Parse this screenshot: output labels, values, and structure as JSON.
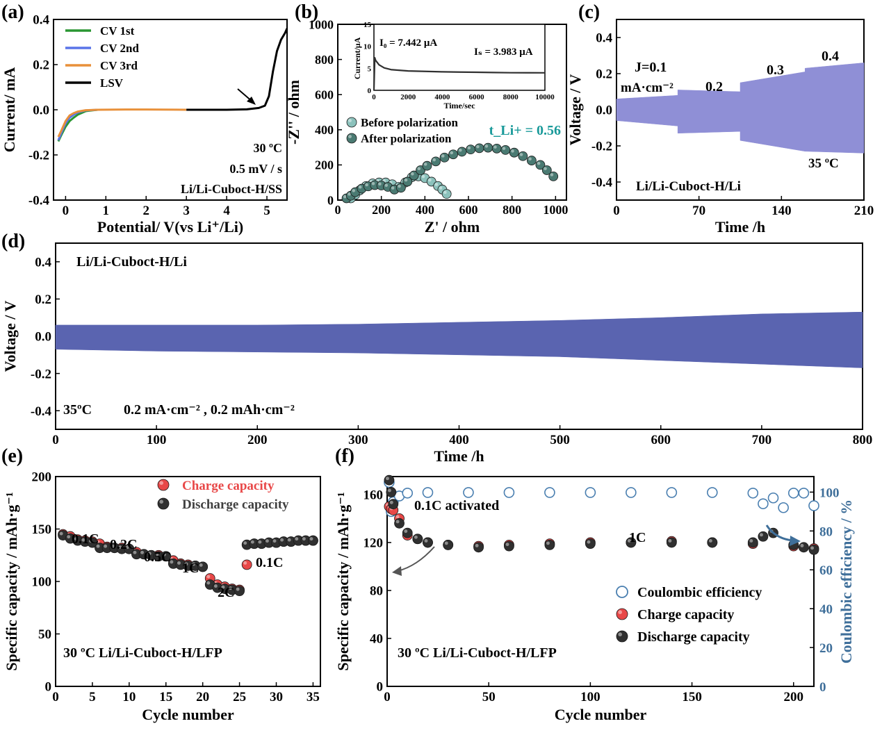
{
  "chart_data": [
    {
      "panel": "(a)",
      "type": "line",
      "xlabel": "Potential/ V(vs Li⁺/Li)",
      "ylabel": "Current/ mA",
      "xlim": [
        -0.3,
        5.5
      ],
      "ylim": [
        -0.4,
        0.4
      ],
      "xticks": [
        0,
        1,
        2,
        3,
        4,
        5
      ],
      "yticks": [
        -0.4,
        -0.2,
        0.0,
        0.2,
        0.4
      ],
      "tick_format": 1,
      "legend_position": "top-left",
      "annotations": [
        "30 ºC",
        "0.5 mV / s",
        "Li/Li-Cuboct-H/SS"
      ],
      "series": [
        {
          "name": "CV 1st",
          "color": "#2a9632",
          "x": [
            -0.18,
            -0.1,
            0.0,
            0.1,
            0.2,
            0.3,
            0.5,
            0.8
          ],
          "y": [
            -0.14,
            -0.11,
            -0.075,
            -0.05,
            -0.035,
            -0.022,
            -0.006,
            0.0
          ]
        },
        {
          "name": "CV 2nd",
          "color": "#5a74e8",
          "x": [
            -0.18,
            -0.1,
            0.0,
            0.1,
            0.2,
            0.3,
            0.5,
            0.8
          ],
          "y": [
            -0.135,
            -0.1,
            -0.06,
            -0.035,
            -0.022,
            -0.012,
            -0.003,
            0.0
          ]
        },
        {
          "name": "CV 3rd",
          "color": "#e8903a",
          "x": [
            -0.18,
            -0.1,
            0.0,
            0.1,
            0.2,
            0.3,
            0.5,
            0.8,
            1.5,
            2.0,
            3.0
          ],
          "y": [
            -0.12,
            -0.09,
            -0.05,
            -0.025,
            -0.015,
            -0.008,
            -0.002,
            0.0,
            0.001,
            0.001,
            0.0
          ]
        },
        {
          "name": "LSV",
          "color": "#000000",
          "x": [
            3.0,
            4.0,
            4.5,
            4.8,
            4.95,
            5.05,
            5.15,
            5.25,
            5.35,
            5.45,
            5.5
          ],
          "y": [
            0.0,
            0.0,
            0.002,
            0.008,
            0.018,
            0.06,
            0.17,
            0.26,
            0.31,
            0.34,
            0.36
          ]
        }
      ]
    },
    {
      "panel": "(b)",
      "type": "scatter",
      "xlabel": "Z' / ohm",
      "ylabel": "-Z'' / ohm",
      "xlim": [
        0,
        1050
      ],
      "ylim": [
        0,
        1000
      ],
      "xticks": [
        0,
        200,
        400,
        600,
        800,
        1000
      ],
      "yticks": [
        0,
        200,
        400,
        600,
        800,
        1000
      ],
      "legend_position": "middle-left",
      "annotation": "t_Li+ = 0.56",
      "series": [
        {
          "name": "Before polarization",
          "color": "#8cc2bc",
          "x": [
            60,
            80,
            100,
            130,
            160,
            190,
            220,
            250,
            280,
            310,
            340,
            370,
            400,
            430,
            460,
            480,
            500
          ],
          "y": [
            10,
            30,
            55,
            80,
            95,
            100,
            100,
            90,
            75,
            100,
            130,
            135,
            125,
            105,
            80,
            60,
            35
          ]
        },
        {
          "name": "After polarization",
          "color": "#4a7a72",
          "x": [
            40,
            60,
            80,
            110,
            140,
            170,
            200,
            230,
            260,
            290,
            320,
            350,
            380,
            410,
            450,
            490,
            530,
            570,
            610,
            650,
            690,
            730,
            770,
            810,
            850,
            890,
            930,
            960,
            990
          ],
          "y": [
            10,
            25,
            45,
            65,
            78,
            85,
            83,
            75,
            60,
            70,
            105,
            140,
            170,
            195,
            220,
            242,
            260,
            275,
            288,
            295,
            298,
            293,
            285,
            270,
            250,
            225,
            200,
            170,
            135
          ]
        }
      ],
      "inset": {
        "xlabel": "Time/sec",
        "ylabel": "Current/μA",
        "xlim": [
          0,
          10000
        ],
        "ylim": [
          0,
          15
        ],
        "xticks": [
          0,
          2000,
          4000,
          6000,
          8000,
          10000
        ],
        "yticks": [
          0,
          5,
          10,
          15
        ],
        "labels": [
          "I₀ = 7.442 μA",
          "Iₛ = 3.983 μA"
        ],
        "x": [
          0,
          50,
          100,
          300,
          600,
          1000,
          2000,
          3000,
          4000,
          5000,
          6000,
          7000,
          8000,
          9000,
          10000
        ],
        "y": [
          0,
          7.4,
          6.8,
          5.8,
          5.1,
          4.7,
          4.4,
          4.3,
          4.2,
          4.15,
          4.1,
          4.05,
          4.0,
          3.99,
          3.98
        ]
      }
    },
    {
      "panel": "(c)",
      "type": "area",
      "xlabel": "Time /h",
      "ylabel": "Voltage / V",
      "xlim": [
        0,
        210
      ],
      "ylim": [
        -0.5,
        0.5
      ],
      "xticks": [
        0,
        70,
        140,
        210
      ],
      "yticks": [
        -0.4,
        -0.2,
        0.0,
        0.2,
        0.4
      ],
      "tick_format": 1,
      "color": "#8f8fd6",
      "labels": [
        "J=0.1",
        "mA·cm⁻²",
        "0.2",
        "0.3",
        "0.4",
        "35 ºC",
        "Li/Li-Cuboct-H/Li"
      ],
      "segments": [
        {
          "current": 0.1,
          "x": [
            0,
            52
          ],
          "upper": [
            0.06,
            0.08
          ],
          "lower": [
            -0.06,
            -0.09
          ]
        },
        {
          "current": 0.2,
          "x": [
            52,
            105
          ],
          "upper": [
            0.11,
            0.1
          ],
          "lower": [
            -0.13,
            -0.12
          ]
        },
        {
          "current": 0.3,
          "x": [
            105,
            160
          ],
          "upper": [
            0.15,
            0.21
          ],
          "lower": [
            -0.17,
            -0.23
          ]
        },
        {
          "current": 0.4,
          "x": [
            160,
            210
          ],
          "upper": [
            0.23,
            0.26
          ],
          "lower": [
            -0.23,
            -0.24
          ]
        }
      ]
    },
    {
      "panel": "(d)",
      "type": "area",
      "xlabel": "Time /h",
      "ylabel": "Voltage / V",
      "xlim": [
        0,
        800
      ],
      "ylim": [
        -0.5,
        0.5
      ],
      "xticks": [
        0,
        100,
        200,
        300,
        400,
        500,
        600,
        700,
        800
      ],
      "yticks": [
        -0.4,
        -0.2,
        0.0,
        0.2,
        0.4
      ],
      "tick_format": 1,
      "color": "#5a64b0",
      "labels": [
        "Li/Li-Cuboct-H/Li",
        "35ºC",
        "0.2 mA·cm⁻² , 0.2 mAh·cm⁻²"
      ],
      "x": [
        0,
        100,
        200,
        300,
        400,
        500,
        600,
        700,
        800
      ],
      "upper": [
        0.06,
        0.06,
        0.06,
        0.065,
        0.075,
        0.085,
        0.1,
        0.12,
        0.13
      ],
      "lower": [
        -0.07,
        -0.08,
        -0.085,
        -0.09,
        -0.1,
        -0.11,
        -0.13,
        -0.15,
        -0.17
      ]
    },
    {
      "panel": "(e)",
      "type": "scatter",
      "xlabel": "Cycle number",
      "ylabel": "Specific capacity / mAh·g⁻¹",
      "xlim": [
        0,
        36
      ],
      "ylim": [
        0,
        200
      ],
      "xticks": [
        0,
        5,
        10,
        15,
        20,
        25,
        30,
        35
      ],
      "yticks": [
        0,
        50,
        100,
        150,
        200
      ],
      "legend_position": "top-right",
      "labels": [
        "0.1C",
        "0.2C",
        "0.5C",
        "1C",
        "2C",
        "0.1C",
        "30 ºC  Li/Li-Cuboct-H/LFP"
      ],
      "x": [
        1,
        2,
        3,
        4,
        5,
        6,
        7,
        8,
        9,
        10,
        11,
        12,
        13,
        14,
        15,
        16,
        17,
        18,
        19,
        20,
        21,
        22,
        23,
        24,
        25,
        26,
        27,
        28,
        29,
        30,
        31,
        32,
        33,
        34,
        35
      ],
      "series": [
        {
          "name": "Charge capacity",
          "color": "#e84848",
          "values": [
            145,
            143,
            140,
            139,
            138,
            136,
            133,
            132,
            132,
            131,
            128,
            126,
            125,
            125,
            124,
            120,
            117,
            116,
            115,
            114,
            103,
            97,
            95,
            93,
            92,
            116,
            136,
            136,
            137,
            137,
            138,
            138,
            139,
            139,
            139
          ]
        },
        {
          "name": "Discharge capacity",
          "color": "#303030",
          "values": [
            144,
            141,
            139,
            138,
            137,
            132,
            132,
            132,
            131,
            131,
            126,
            126,
            125,
            124,
            124,
            117,
            116,
            115,
            115,
            114,
            97,
            94,
            93,
            92,
            91,
            135,
            136,
            136,
            137,
            137,
            138,
            138,
            139,
            139,
            139
          ]
        }
      ]
    },
    {
      "panel": "(f)",
      "type": "scatter",
      "xlabel": "Cycle number",
      "ylabel": "Specific capacity / mAh·g⁻¹",
      "y2label": "Coulombic efficiency / %",
      "xlim": [
        0,
        210
      ],
      "ylim": [
        0,
        175
      ],
      "y2lim": [
        0,
        108
      ],
      "xticks": [
        0,
        50,
        100,
        150,
        200
      ],
      "yticks": [
        0,
        40,
        80,
        120,
        160
      ],
      "y2ticks": [
        0,
        20,
        40,
        60,
        80,
        100
      ],
      "legend_position": "bottom-right",
      "labels": [
        "0.1C activated",
        "1C",
        "30 ºC  Li/Li-Cuboct-H/LFP"
      ],
      "series": [
        {
          "name": "Coulombic efficiency",
          "color": "#4a7fb0",
          "axis": "right",
          "x": [
            1,
            2,
            3,
            6,
            10,
            20,
            40,
            60,
            80,
            100,
            120,
            140,
            160,
            180,
            185,
            190,
            195,
            200,
            205,
            210
          ],
          "y": [
            105,
            90,
            95,
            98,
            99.5,
            99.8,
            99.8,
            99.8,
            99.8,
            99.8,
            99.8,
            99.8,
            99.8,
            99.5,
            94,
            97,
            92,
            99.5,
            99.5,
            93
          ]
        },
        {
          "name": "Charge capacity",
          "color": "#e84848",
          "axis": "left",
          "x": [
            1,
            2,
            3,
            6,
            10,
            15,
            20,
            30,
            45,
            60,
            80,
            100,
            120,
            140,
            160,
            180,
            200,
            210
          ],
          "y": [
            150,
            148,
            147,
            140,
            126,
            123,
            120,
            118,
            117,
            118,
            119,
            120,
            120,
            121,
            120,
            119,
            117,
            115
          ]
        },
        {
          "name": "Discharge capacity",
          "color": "#303030",
          "axis": "left",
          "x": [
            1,
            2,
            3,
            6,
            10,
            15,
            20,
            30,
            45,
            60,
            80,
            100,
            120,
            140,
            160,
            180,
            185,
            190,
            200,
            205,
            210
          ],
          "y": [
            172,
            162,
            152,
            136,
            128,
            123,
            120,
            118,
            116,
            117,
            118,
            119,
            120,
            120,
            120,
            120,
            125,
            128,
            118,
            116,
            114
          ]
        }
      ]
    }
  ]
}
